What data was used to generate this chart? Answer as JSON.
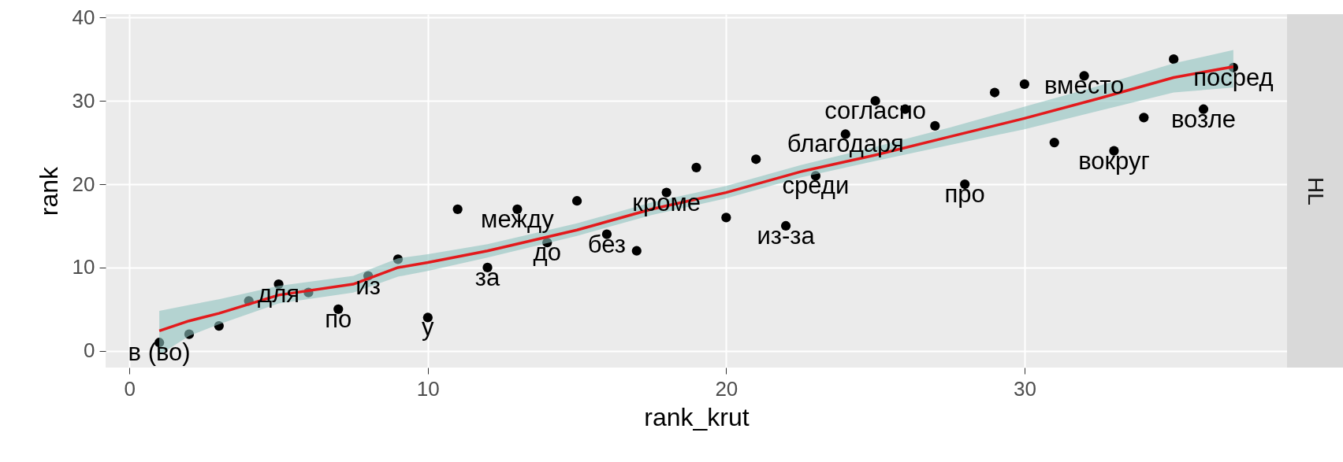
{
  "chart_data": {
    "type": "scatter",
    "xlabel": "rank_krut",
    "ylabel": "rank",
    "annotations": [
      "HL"
    ],
    "x": [
      1,
      2,
      3,
      4,
      5,
      6,
      7,
      8,
      9,
      10,
      11,
      12,
      13,
      14,
      15,
      16,
      17,
      18,
      19,
      20,
      21,
      22,
      23,
      24,
      25,
      26,
      27,
      28,
      29,
      30,
      31,
      32,
      33,
      34,
      35,
      36,
      37
    ],
    "series": [
      {
        "type": "scatter",
        "marker": "circle",
        "color": "#000000",
        "values": [
          1,
          2,
          3,
          6,
          8,
          7,
          5,
          9,
          11,
          4,
          17,
          10,
          17,
          13,
          18,
          14,
          12,
          19,
          22,
          16,
          23,
          15,
          21,
          26,
          30,
          29,
          27,
          20,
          31,
          32,
          25,
          33,
          24,
          28,
          35,
          29,
          34
        ],
        "value_labels": [
          "в (во)",
          null,
          null,
          null,
          "для",
          null,
          "по",
          "из",
          null,
          "у",
          null,
          "за",
          "между",
          "до",
          null,
          "без",
          null,
          "кроме",
          null,
          null,
          null,
          "из-за",
          "среди",
          "благодаря",
          "согласно",
          null,
          null,
          "про",
          null,
          null,
          null,
          "вместо",
          "вокруг",
          null,
          null,
          "возле",
          "посред"
        ]
      },
      {
        "type": "line",
        "color": "#e31a1c",
        "x": [
          1,
          2,
          3,
          5,
          7.5,
          9,
          10,
          12,
          15,
          17.5,
          20,
          22.5,
          25,
          27.5,
          30,
          32.5,
          35,
          37
        ],
        "values": [
          2.4,
          3.6,
          4.5,
          6.7,
          8,
          10,
          10.6,
          12,
          14.5,
          17,
          19,
          21.5,
          23.5,
          25.7,
          27.9,
          30.3,
          32.8,
          34.1
        ],
        "lower": [
          -0.5,
          1.8,
          3.2,
          5.7,
          7,
          8.9,
          9.6,
          11.2,
          13.8,
          16.3,
          18.3,
          20.8,
          22.8,
          24.7,
          26.6,
          28.8,
          31,
          31.6
        ],
        "upper": [
          4.8,
          5.5,
          6.2,
          7.8,
          9,
          11.1,
          11.6,
          12.8,
          15.3,
          17.8,
          19.8,
          22.3,
          24.5,
          26.8,
          29.3,
          31.8,
          34.5,
          36.1
        ]
      }
    ],
    "xlim": [
      -0.8,
      38.8
    ],
    "ylim": [
      -2,
      40.4
    ],
    "xticks": [
      0,
      10,
      20,
      30
    ],
    "yticks": [
      0,
      10,
      20,
      30,
      40
    ],
    "grid": true
  }
}
